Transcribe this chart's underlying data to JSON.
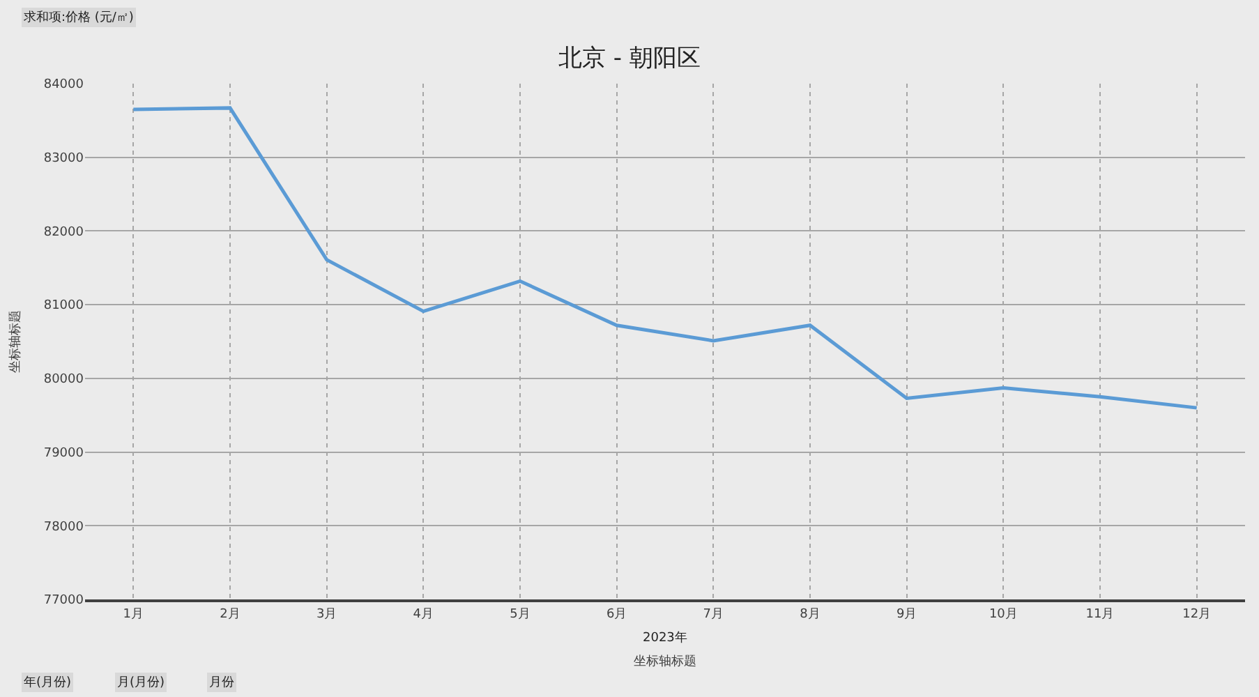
{
  "chart_data": {
    "type": "line",
    "title": "北京 - 朝阳区",
    "xlabel": "坐标轴标题",
    "ylabel": "坐标轴标题",
    "categories": [
      "1月",
      "2月",
      "3月",
      "4月",
      "5月",
      "6月",
      "7月",
      "8月",
      "9月",
      "10月",
      "11月",
      "12月"
    ],
    "series": [
      {
        "color": "#5b9bd5",
        "values": [
          83650,
          83670,
          81610,
          80910,
          81320,
          80720,
          80510,
          80720,
          79730,
          79870,
          79750,
          79600
        ]
      }
    ],
    "ylim": [
      77000,
      84000
    ],
    "yticks": [
      77000,
      78000,
      79000,
      80000,
      81000,
      82000,
      83000,
      84000
    ],
    "grid": true,
    "legend": false,
    "marker": "none",
    "line_style": "solid",
    "annotations": [
      "求和项:价格 (元/㎡)",
      "2023年",
      "年(月份)",
      "月(月份)",
      "月份"
    ]
  }
}
